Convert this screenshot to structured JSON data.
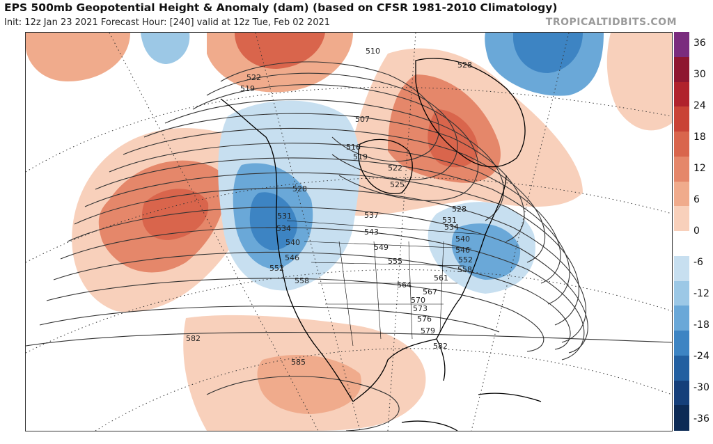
{
  "header": {
    "title": "EPS 500mb Geopotential Height & Anomaly (dam) (based on CFSR 1981-2010 Climatology)",
    "subtitle": "Init: 12z Jan 23 2021   Forecast Hour: [240]   valid at 12z Tue, Feb 02 2021",
    "brand": "TROPICALTIDBITS.COM"
  },
  "colorbar": {
    "ticks": [
      "36",
      "30",
      "24",
      "18",
      "12",
      "6",
      "0",
      "-6",
      "-12",
      "-18",
      "-24",
      "-30",
      "-36"
    ],
    "colors": [
      "#7a2c7e",
      "#8e1630",
      "#b0222c",
      "#c94336",
      "#d9654c",
      "#e5876a",
      "#f0ab8c",
      "#f8d0bb",
      "#ffffff",
      "#c7dff0",
      "#9cc8e6",
      "#6aa8d8",
      "#3d84c3",
      "#225fa0",
      "#153f7a",
      "#0c2a55"
    ]
  },
  "map": {
    "contour_labels": [
      "510",
      "528",
      "522",
      "519",
      "507",
      "516",
      "519",
      "522",
      "525",
      "528",
      "528",
      "531",
      "534",
      "537",
      "543",
      "549",
      "531",
      "534",
      "540",
      "546",
      "552",
      "558",
      "555",
      "561",
      "564",
      "567",
      "570",
      "573",
      "576",
      "579",
      "582",
      "582",
      "585",
      "540",
      "546",
      "552",
      "558"
    ],
    "anomaly_features": [
      {
        "name": "ridge-north-pacific",
        "sign": "positive"
      },
      {
        "name": "ridge-alaska-north",
        "sign": "positive"
      },
      {
        "name": "ridge-greenland-canada",
        "sign": "positive"
      },
      {
        "name": "ridge-mexico-gulf",
        "sign": "positive"
      },
      {
        "name": "trough-west-coast",
        "sign": "negative"
      },
      {
        "name": "trough-east-coast",
        "sign": "negative"
      },
      {
        "name": "trough-north-atlantic",
        "sign": "negative"
      }
    ]
  }
}
